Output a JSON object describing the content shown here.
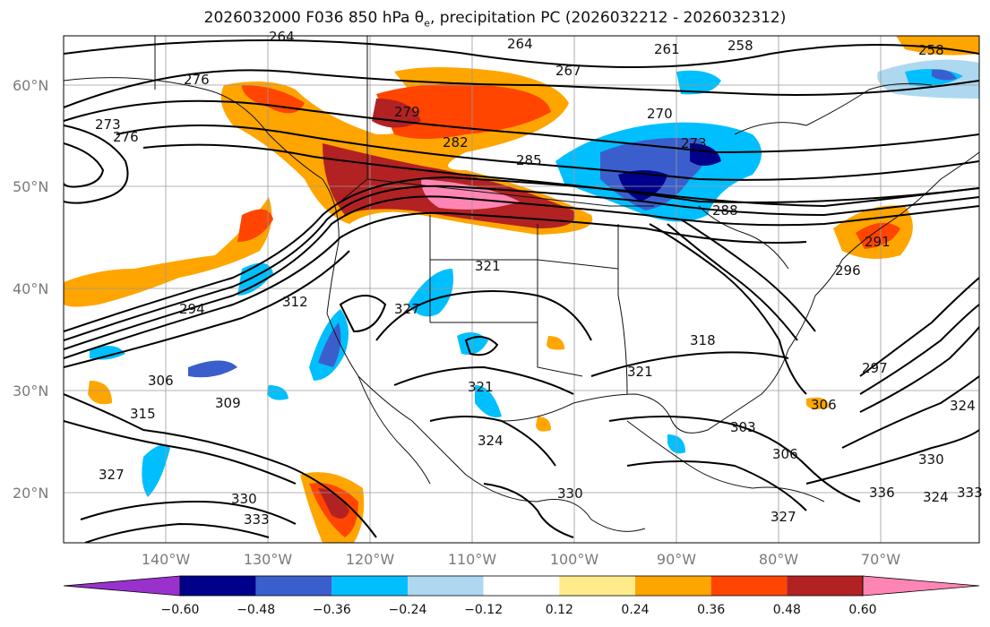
{
  "title_pre": "2026032000 F036 850 hPa ",
  "title_theta": "θ",
  "title_sub": "e",
  "title_post": ", precipitation PC (2026032212 - 2026032312)",
  "lat_labels": [
    "60°N",
    "50°N",
    "40°N",
    "30°N",
    "20°N"
  ],
  "lon_labels": [
    "140°W",
    "130°W",
    "120°W",
    "110°W",
    "100°W",
    "90°W",
    "80°W",
    "70°W"
  ],
  "contour_labels": [
    "264",
    "264",
    "258",
    "258",
    "261",
    "267",
    "276",
    "273",
    "276",
    "279",
    "270",
    "273",
    "282",
    "285",
    "288",
    "291",
    "296",
    "294",
    "312",
    "321",
    "327",
    "318",
    "321",
    "324",
    "321",
    "297",
    "306",
    "309",
    "306",
    "315",
    "303",
    "306",
    "330",
    "324",
    "327",
    "333",
    "324",
    "330",
    "333",
    "336",
    "327",
    "330"
  ],
  "colorbar": {
    "ticks": [
      "−0.60",
      "−0.48",
      "−0.36",
      "−0.24",
      "−0.12",
      "0.12",
      "0.24",
      "0.36",
      "0.48",
      "0.60"
    ],
    "colors": [
      "#9932cc",
      "#00008b",
      "#3a5fcd",
      "#00bfff",
      "#add8f0",
      "#ffffff",
      "#ffeb8a",
      "#ffa500",
      "#ff4500",
      "#b22222",
      "#ff85b4"
    ]
  }
}
